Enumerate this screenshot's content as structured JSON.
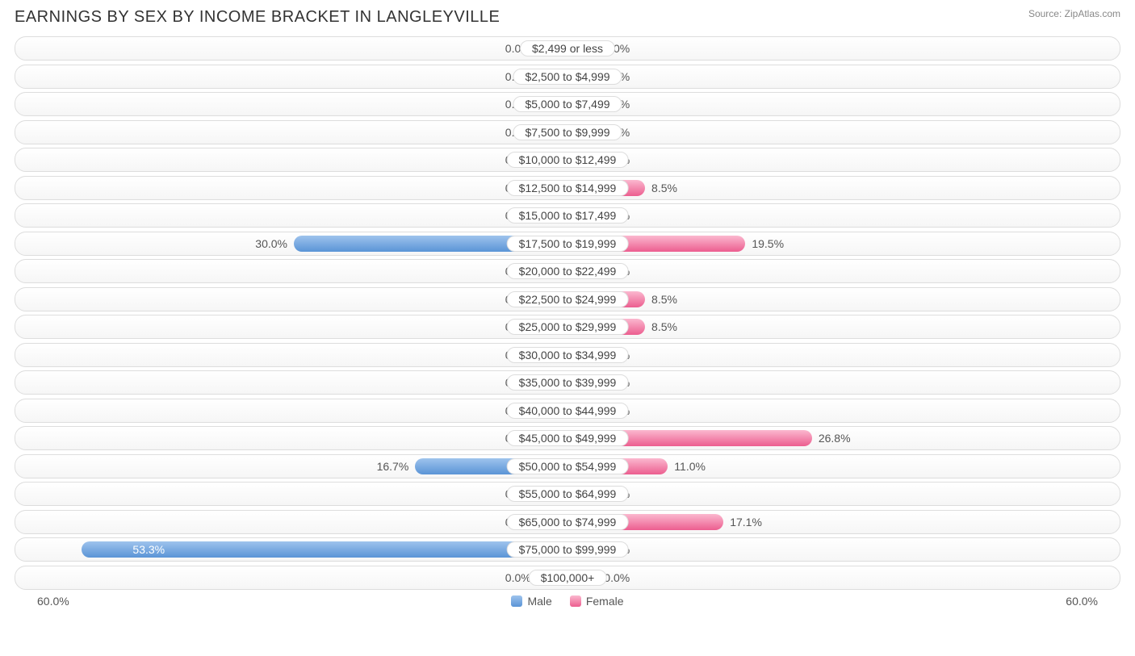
{
  "title": "EARNINGS BY SEX BY INCOME BRACKET IN LANGLEYVILLE",
  "source": "Source: ZipAtlas.com",
  "axis_max": 60.0,
  "axis_label_left": "60.0%",
  "axis_label_right": "60.0%",
  "min_bar_pct": 5.5,
  "colors": {
    "male_top": "#9ec3ed",
    "male_bottom": "#5a94d6",
    "female_top": "#fbb8cf",
    "female_bottom": "#ec5e8f",
    "track_border": "#dddddd",
    "text": "#555555",
    "title_text": "#333333",
    "source_text": "#888888",
    "background": "#ffffff"
  },
  "legend": {
    "male": "Male",
    "female": "Female"
  },
  "rows": [
    {
      "label": "$2,499 or less",
      "male": 0.0,
      "female": 0.0
    },
    {
      "label": "$2,500 to $4,999",
      "male": 0.0,
      "female": 0.0
    },
    {
      "label": "$5,000 to $7,499",
      "male": 0.0,
      "female": 0.0
    },
    {
      "label": "$7,500 to $9,999",
      "male": 0.0,
      "female": 0.0
    },
    {
      "label": "$10,000 to $12,499",
      "male": 0.0,
      "female": 0.0
    },
    {
      "label": "$12,500 to $14,999",
      "male": 0.0,
      "female": 8.5
    },
    {
      "label": "$15,000 to $17,499",
      "male": 0.0,
      "female": 0.0
    },
    {
      "label": "$17,500 to $19,999",
      "male": 30.0,
      "female": 19.5
    },
    {
      "label": "$20,000 to $22,499",
      "male": 0.0,
      "female": 0.0
    },
    {
      "label": "$22,500 to $24,999",
      "male": 0.0,
      "female": 8.5
    },
    {
      "label": "$25,000 to $29,999",
      "male": 0.0,
      "female": 8.5
    },
    {
      "label": "$30,000 to $34,999",
      "male": 0.0,
      "female": 0.0
    },
    {
      "label": "$35,000 to $39,999",
      "male": 0.0,
      "female": 0.0
    },
    {
      "label": "$40,000 to $44,999",
      "male": 0.0,
      "female": 0.0
    },
    {
      "label": "$45,000 to $49,999",
      "male": 0.0,
      "female": 26.8
    },
    {
      "label": "$50,000 to $54,999",
      "male": 16.7,
      "female": 11.0
    },
    {
      "label": "$55,000 to $64,999",
      "male": 0.0,
      "female": 0.0
    },
    {
      "label": "$65,000 to $74,999",
      "male": 0.0,
      "female": 17.1
    },
    {
      "label": "$75,000 to $99,999",
      "male": 53.3,
      "female": 0.0
    },
    {
      "label": "$100,000+",
      "male": 0.0,
      "female": 0.0
    }
  ],
  "typography": {
    "title_fontsize": 20,
    "label_fontsize": 14,
    "source_fontsize": 12
  }
}
